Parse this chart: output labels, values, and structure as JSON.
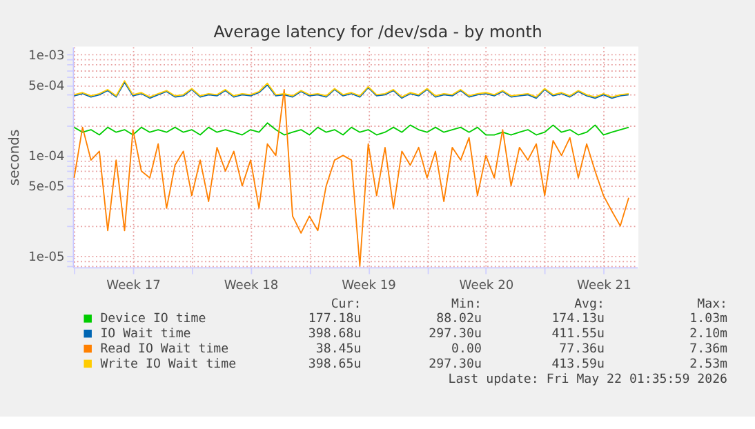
{
  "chart_data": {
    "type": "line",
    "title": "Average latency for /dev/sda - by month",
    "ylabel": "seconds",
    "log": "y",
    "grid": true,
    "legend": "bottom",
    "marker": "none",
    "line_style": "solid",
    "x": [
      "2026-04-20T00:00",
      "2026-04-20T12:00",
      "2026-04-21T00:00",
      "2026-04-21T12:00",
      "2026-04-22T00:00",
      "2026-04-22T12:00",
      "2026-04-23T00:00",
      "2026-04-23T12:00",
      "2026-04-24T00:00",
      "2026-04-24T12:00",
      "2026-04-25T00:00",
      "2026-04-25T12:00",
      "2026-04-26T00:00",
      "2026-04-26T12:00",
      "2026-04-27T00:00",
      "2026-04-27T12:00",
      "2026-04-28T00:00",
      "2026-04-28T12:00",
      "2026-04-29T00:00",
      "2026-04-29T12:00",
      "2026-04-30T00:00",
      "2026-04-30T12:00",
      "2026-05-01T00:00",
      "2026-05-01T12:00",
      "2026-05-02T00:00",
      "2026-05-02T12:00",
      "2026-05-03T00:00",
      "2026-05-03T12:00",
      "2026-05-04T00:00",
      "2026-05-04T12:00",
      "2026-05-05T00:00",
      "2026-05-05T12:00",
      "2026-05-06T00:00",
      "2026-05-06T12:00",
      "2026-05-07T00:00",
      "2026-05-07T12:00",
      "2026-05-08T00:00",
      "2026-05-08T12:00",
      "2026-05-09T00:00",
      "2026-05-09T12:00",
      "2026-05-10T00:00",
      "2026-05-10T12:00",
      "2026-05-11T00:00",
      "2026-05-11T12:00",
      "2026-05-12T00:00",
      "2026-05-12T12:00",
      "2026-05-13T00:00",
      "2026-05-13T12:00",
      "2026-05-14T00:00",
      "2026-05-14T12:00",
      "2026-05-15T00:00",
      "2026-05-15T12:00",
      "2026-05-16T00:00",
      "2026-05-16T12:00",
      "2026-05-17T00:00",
      "2026-05-17T12:00",
      "2026-05-18T00:00",
      "2026-05-18T12:00",
      "2026-05-19T00:00",
      "2026-05-19T12:00",
      "2026-05-20T00:00",
      "2026-05-20T12:00",
      "2026-05-21T00:00",
      "2026-05-21T12:00",
      "2026-05-22T00:00",
      "2026-05-22T12:00",
      "2026-05-23T00:00"
    ],
    "xlim": [
      "2026-04-19T22:00",
      "2026-05-23T12:00"
    ],
    "xticks": [
      {
        "value": "2026-04-20T00:00",
        "label": null
      },
      {
        "value": "2026-04-23T12:00",
        "label": "Week 17"
      },
      {
        "value": "2026-04-27T00:00",
        "label": null
      },
      {
        "value": "2026-04-30T12:00",
        "label": "Week 18"
      },
      {
        "value": "2026-05-04T00:00",
        "label": null
      },
      {
        "value": "2026-05-07T12:00",
        "label": "Week 19"
      },
      {
        "value": "2026-05-11T00:00",
        "label": null
      },
      {
        "value": "2026-05-14T12:00",
        "label": "Week 20"
      },
      {
        "value": "2026-05-18T00:00",
        "label": null
      },
      {
        "value": "2026-05-21T12:00",
        "label": "Week 21"
      }
    ],
    "ylim": [
      7.8e-06,
      0.0012
    ],
    "yticks": [
      {
        "value": 8e-06,
        "label": null
      },
      {
        "value": 9e-06,
        "label": null
      },
      {
        "value": 1e-05,
        "label": "1e-05"
      },
      {
        "value": 2e-05,
        "label": null
      },
      {
        "value": 3e-05,
        "label": null
      },
      {
        "value": 4e-05,
        "label": null
      },
      {
        "value": 5e-05,
        "label": "5e-05"
      },
      {
        "value": 6e-05,
        "label": null
      },
      {
        "value": 7e-05,
        "label": null
      },
      {
        "value": 8e-05,
        "label": null
      },
      {
        "value": 9e-05,
        "label": null
      },
      {
        "value": 0.0001,
        "label": "1e-04"
      },
      {
        "value": 0.0002,
        "label": null
      },
      {
        "value": 0.0003,
        "label": null
      },
      {
        "value": 0.0004,
        "label": null
      },
      {
        "value": 0.0005,
        "label": "5e-04"
      },
      {
        "value": 0.0006,
        "label": null
      },
      {
        "value": 0.0007,
        "label": null
      },
      {
        "value": 0.0008,
        "label": null
      },
      {
        "value": 0.0009,
        "label": null
      },
      {
        "value": 0.001,
        "label": "1e-03"
      }
    ],
    "series": [
      {
        "name": "Device IO time",
        "color": "#00cc00",
        "values": [
          0.00019,
          0.00017,
          0.00018,
          0.00016,
          0.00019,
          0.00017,
          0.00018,
          0.00016,
          0.00019,
          0.00017,
          0.00018,
          0.00017,
          0.00019,
          0.00017,
          0.00018,
          0.00016,
          0.00019,
          0.00017,
          0.00018,
          0.00017,
          0.00016,
          0.00018,
          0.00017,
          0.00021,
          0.00018,
          0.00016,
          0.00017,
          0.00018,
          0.00016,
          0.00019,
          0.00017,
          0.00018,
          0.00016,
          0.00019,
          0.00017,
          0.00018,
          0.00016,
          0.00017,
          0.00019,
          0.00017,
          0.0002,
          0.00018,
          0.00017,
          0.00019,
          0.00017,
          0.00018,
          0.00019,
          0.00017,
          0.00019,
          0.00016,
          0.00016,
          0.00017,
          0.00016,
          0.00017,
          0.00018,
          0.00016,
          0.00017,
          0.0002,
          0.00017,
          0.00018,
          0.00016,
          0.00017,
          0.0002,
          0.00016,
          0.00017,
          0.00018,
          0.00019
        ]
      },
      {
        "name": "IO Wait time",
        "color": "#0066b3",
        "values": [
          0.00039,
          0.00041,
          0.00038,
          0.0004,
          0.00044,
          0.00038,
          0.00053,
          0.00039,
          0.00041,
          0.00037,
          0.0004,
          0.00043,
          0.00038,
          0.00039,
          0.00045,
          0.00038,
          0.0004,
          0.00039,
          0.00044,
          0.00038,
          0.0004,
          0.00039,
          0.00042,
          0.0005,
          0.00039,
          0.0004,
          0.00038,
          0.00043,
          0.00039,
          0.0004,
          0.00038,
          0.00045,
          0.00039,
          0.00041,
          0.00038,
          0.00047,
          0.00039,
          0.0004,
          0.00044,
          0.00037,
          0.00041,
          0.00039,
          0.00045,
          0.00038,
          0.0004,
          0.00039,
          0.00044,
          0.00038,
          0.0004,
          0.00041,
          0.00039,
          0.00043,
          0.00038,
          0.00039,
          0.0004,
          0.00037,
          0.00045,
          0.00039,
          0.00041,
          0.00038,
          0.00043,
          0.00039,
          0.00037,
          0.0004,
          0.00037,
          0.00039,
          0.0004
        ]
      },
      {
        "name": "Read IO Wait time",
        "color": "#ff8000",
        "values": [
          6e-05,
          0.00019,
          9e-05,
          0.00011,
          1.8e-05,
          9e-05,
          1.8e-05,
          0.00018,
          7e-05,
          6e-05,
          0.00013,
          3e-05,
          8e-05,
          0.00011,
          4e-05,
          9e-05,
          3.5e-05,
          0.00012,
          7e-05,
          0.00011,
          5e-05,
          9e-05,
          3e-05,
          0.00013,
          0.0001,
          0.00045,
          2.5e-05,
          1.7e-05,
          2.5e-05,
          1.8e-05,
          5e-05,
          9e-05,
          0.0001,
          9e-05,
          8e-06,
          0.00013,
          4e-05,
          0.00012,
          3e-05,
          0.00011,
          8e-05,
          0.00012,
          6e-05,
          0.00011,
          3.5e-05,
          0.00012,
          9e-05,
          0.00015,
          4e-05,
          0.0001,
          6e-05,
          0.00018,
          5e-05,
          0.00012,
          9e-05,
          0.00013,
          4e-05,
          0.00014,
          0.0001,
          0.00015,
          6e-05,
          0.00013,
          7e-05,
          4e-05,
          2.8e-05,
          2e-05,
          3.8e-05
        ]
      },
      {
        "name": "Write IO Wait time",
        "color": "#ffcc00",
        "values": [
          0.0004,
          0.00042,
          0.00039,
          0.00041,
          0.00045,
          0.00039,
          0.00055,
          0.0004,
          0.00042,
          0.00038,
          0.00041,
          0.00044,
          0.00039,
          0.0004,
          0.00046,
          0.00039,
          0.00041,
          0.0004,
          0.00045,
          0.00039,
          0.00041,
          0.0004,
          0.00043,
          0.00052,
          0.0004,
          0.00041,
          0.00039,
          0.00044,
          0.0004,
          0.00041,
          0.00039,
          0.00046,
          0.0004,
          0.00042,
          0.00039,
          0.00048,
          0.0004,
          0.00041,
          0.00045,
          0.00038,
          0.00042,
          0.0004,
          0.00046,
          0.00039,
          0.00041,
          0.0004,
          0.00045,
          0.00039,
          0.00041,
          0.00042,
          0.0004,
          0.00044,
          0.00039,
          0.0004,
          0.00041,
          0.00038,
          0.00046,
          0.0004,
          0.00042,
          0.00039,
          0.00044,
          0.0004,
          0.00038,
          0.00041,
          0.00038,
          0.0004,
          0.00041
        ]
      }
    ],
    "annotations": [
      "Cur:",
      "Min:",
      "Avg:",
      "Max:",
      "177.18u",
      "88.02u",
      "174.13u",
      "1.03m",
      "398.68u",
      "297.30u",
      "411.55u",
      "2.10m",
      "38.45u",
      "0.00",
      "77.36u",
      "7.36m",
      "398.65u",
      "297.30u",
      "413.59u",
      "2.53m",
      "Last update: Fri May 22 01:35:59 2026"
    ]
  }
}
